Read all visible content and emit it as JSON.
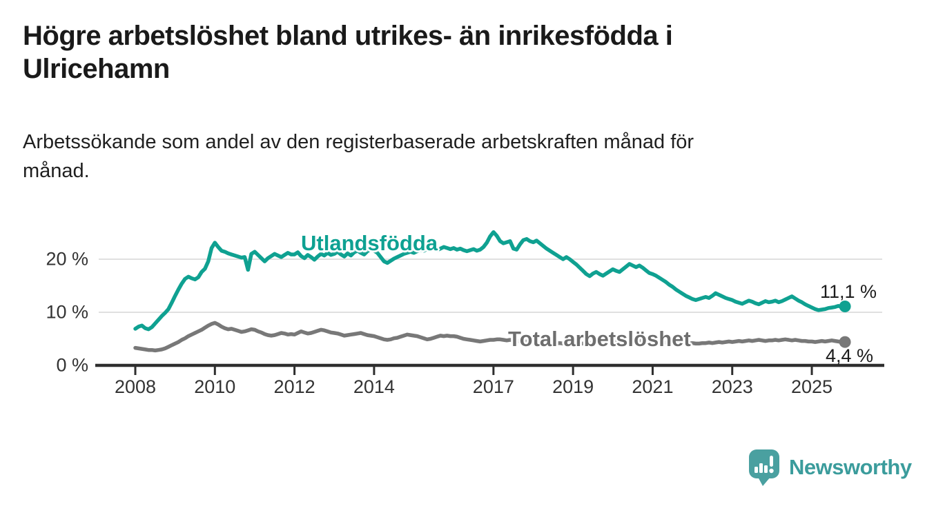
{
  "header": {
    "title_line1": "Högre arbetslöshet bland utrikes- än inrikesfödda i",
    "title_line2": "Ulricehamn",
    "subtitle_line1": "Arbetssökande som andel av den registerbaserade arbetskraften månad för",
    "subtitle_line2": "månad."
  },
  "branding": {
    "name": "Newsworthy",
    "icon_color": "#4aa0a0",
    "text_color": "#3b9c9c"
  },
  "chart_data": {
    "type": "line",
    "x_unit": "month",
    "start_year": 2008,
    "end_month_label": "2025-11",
    "x_tick_years": [
      2008,
      2010,
      2012,
      2014,
      2017,
      2019,
      2021,
      2023,
      2025
    ],
    "y_ticks": [
      {
        "value": 0,
        "label": "0 %"
      },
      {
        "value": 10,
        "label": "10 %"
      },
      {
        "value": 20,
        "label": "20 %"
      }
    ],
    "ylim": [
      0,
      26
    ],
    "grid": "horizontal",
    "colors": {
      "axis": "#2e2e2e",
      "gridline": "#e0e0e0"
    },
    "series": [
      {
        "name": "Utlandsfödda",
        "color": "#0fa191",
        "end_value_label": "11,1 %",
        "end_value": 11.1,
        "values": [
          6.9,
          7.3,
          7.5,
          7.0,
          6.8,
          7.2,
          7.9,
          8.6,
          9.3,
          9.9,
          10.6,
          11.8,
          13.1,
          14.3,
          15.4,
          16.3,
          16.7,
          16.4,
          16.2,
          16.6,
          17.6,
          18.2,
          19.6,
          22.1,
          23.1,
          22.3,
          21.6,
          21.4,
          21.1,
          20.9,
          20.7,
          20.5,
          20.3,
          20.4,
          18.0,
          21.0,
          21.4,
          20.8,
          20.2,
          19.6,
          20.2,
          20.6,
          21.0,
          20.7,
          20.4,
          20.8,
          21.2,
          20.9,
          20.9,
          21.3,
          20.6,
          20.2,
          20.8,
          20.4,
          19.9,
          20.5,
          21.0,
          20.7,
          21.2,
          20.8,
          21.0,
          21.4,
          20.9,
          20.5,
          21.1,
          20.7,
          21.3,
          21.6,
          21.2,
          20.9,
          21.5,
          21.9,
          21.6,
          21.2,
          20.4,
          19.6,
          19.3,
          19.7,
          20.1,
          20.4,
          20.7,
          21.0,
          21.2,
          21.4,
          21.2,
          21.5,
          21.8,
          21.6,
          21.9,
          22.2,
          22.0,
          21.7,
          22.0,
          22.3,
          22.1,
          21.9,
          22.1,
          21.8,
          22.0,
          21.7,
          21.5,
          21.7,
          21.9,
          21.6,
          21.8,
          22.3,
          23.1,
          24.3,
          25.1,
          24.4,
          23.4,
          23.0,
          23.2,
          23.4,
          22.0,
          21.8,
          22.8,
          23.6,
          23.8,
          23.4,
          23.2,
          23.5,
          23.0,
          22.5,
          22.0,
          21.6,
          21.2,
          20.8,
          20.4,
          20.0,
          20.4,
          20.0,
          19.5,
          19.0,
          18.4,
          17.8,
          17.2,
          16.8,
          17.3,
          17.6,
          17.2,
          16.9,
          17.3,
          17.7,
          18.1,
          17.8,
          17.6,
          18.1,
          18.6,
          19.1,
          18.8,
          18.5,
          18.8,
          18.4,
          17.9,
          17.4,
          17.2,
          16.9,
          16.5,
          16.1,
          15.7,
          15.2,
          14.8,
          14.3,
          13.9,
          13.5,
          13.1,
          12.8,
          12.5,
          12.3,
          12.5,
          12.7,
          12.9,
          12.7,
          13.1,
          13.6,
          13.3,
          13.0,
          12.7,
          12.5,
          12.3,
          12.0,
          11.8,
          11.6,
          11.9,
          12.2,
          12.0,
          11.7,
          11.5,
          11.8,
          12.1,
          11.9,
          12.0,
          12.2,
          11.9,
          12.1,
          12.4,
          12.7,
          13.0,
          12.6,
          12.2,
          11.9,
          11.5,
          11.2,
          10.9,
          10.6,
          10.4,
          10.5,
          10.6,
          10.8,
          10.9,
          11.0,
          11.2,
          11.0,
          11.1
        ]
      },
      {
        "name": "Total arbetslöshet",
        "color": "#787878",
        "end_value_label": "4,4 %",
        "end_value": 4.4,
        "values": [
          3.3,
          3.2,
          3.1,
          3.0,
          2.9,
          2.9,
          2.8,
          2.9,
          3.0,
          3.2,
          3.5,
          3.8,
          4.1,
          4.4,
          4.8,
          5.1,
          5.5,
          5.8,
          6.1,
          6.4,
          6.7,
          7.1,
          7.5,
          7.8,
          8.0,
          7.7,
          7.3,
          7.0,
          6.8,
          6.9,
          6.7,
          6.5,
          6.3,
          6.4,
          6.6,
          6.8,
          6.7,
          6.4,
          6.2,
          5.9,
          5.7,
          5.6,
          5.7,
          5.9,
          6.1,
          6.0,
          5.8,
          5.9,
          5.8,
          6.1,
          6.4,
          6.2,
          6.0,
          6.1,
          6.3,
          6.5,
          6.7,
          6.6,
          6.4,
          6.2,
          6.1,
          6.0,
          5.8,
          5.6,
          5.7,
          5.8,
          5.9,
          6.0,
          6.1,
          5.9,
          5.7,
          5.6,
          5.5,
          5.3,
          5.1,
          4.9,
          4.8,
          4.9,
          5.1,
          5.2,
          5.4,
          5.6,
          5.8,
          5.7,
          5.6,
          5.5,
          5.3,
          5.1,
          4.9,
          5.0,
          5.2,
          5.4,
          5.6,
          5.5,
          5.6,
          5.5,
          5.5,
          5.4,
          5.2,
          5.0,
          4.9,
          4.8,
          4.7,
          4.6,
          4.5,
          4.6,
          4.7,
          4.8,
          4.8,
          4.9,
          4.9,
          4.8,
          4.7,
          4.8,
          4.7,
          4.6,
          4.6,
          4.5,
          4.5,
          4.4,
          4.4,
          4.3,
          4.3,
          4.2,
          4.2,
          4.3,
          4.3,
          4.2,
          4.2,
          4.1,
          4.1,
          4.2,
          4.2,
          4.2,
          4.1,
          4.1,
          4.2,
          4.2,
          4.3,
          4.3,
          4.2,
          4.2,
          4.3,
          4.3,
          4.4,
          4.4,
          4.5,
          4.7,
          4.8,
          4.9,
          4.8,
          4.8,
          4.7,
          4.6,
          4.5,
          4.5,
          4.5,
          4.4,
          4.4,
          4.3,
          4.3,
          4.2,
          4.2,
          4.1,
          4.1,
          4.1,
          4.2,
          4.2,
          4.2,
          4.1,
          4.1,
          4.2,
          4.2,
          4.3,
          4.2,
          4.3,
          4.4,
          4.3,
          4.4,
          4.5,
          4.4,
          4.5,
          4.6,
          4.5,
          4.6,
          4.7,
          4.6,
          4.7,
          4.8,
          4.7,
          4.6,
          4.7,
          4.7,
          4.8,
          4.7,
          4.8,
          4.9,
          4.8,
          4.7,
          4.8,
          4.7,
          4.6,
          4.6,
          4.5,
          4.5,
          4.4,
          4.5,
          4.6,
          4.5,
          4.6,
          4.7,
          4.6,
          4.5,
          4.4,
          4.4
        ]
      }
    ]
  }
}
